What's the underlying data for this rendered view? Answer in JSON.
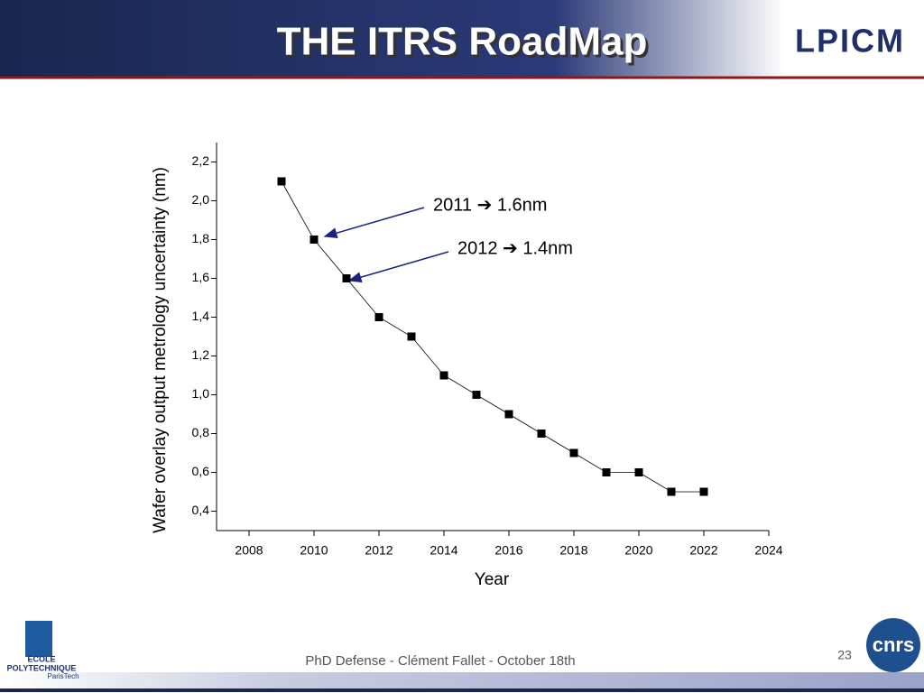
{
  "header": {
    "title": "THE ITRS RoadMap",
    "logo": "LPICM"
  },
  "chart_data": {
    "type": "line",
    "x": [
      2009,
      2010,
      2011,
      2012,
      2013,
      2014,
      2015,
      2016,
      2017,
      2018,
      2019,
      2020,
      2021,
      2022
    ],
    "values": [
      2.1,
      1.8,
      1.6,
      1.4,
      1.3,
      1.1,
      1.0,
      0.9,
      0.8,
      0.7,
      0.6,
      0.6,
      0.5,
      0.5
    ],
    "color": "#000000",
    "x_label": "Year",
    "y_label": "Wafer overlay output metrology uncertainty (nm)",
    "xlim": [
      2007,
      2024
    ],
    "xticks": [
      2008,
      2010,
      2012,
      2014,
      2016,
      2018,
      2020,
      2022,
      2024
    ],
    "ylim": [
      0.3,
      2.3
    ],
    "yticks": [
      {
        "value": 0.4,
        "label": "0,4"
      },
      {
        "value": 0.6,
        "label": "0,6"
      },
      {
        "value": 0.8,
        "label": "0,8"
      },
      {
        "value": 1.0,
        "label": "1,0"
      },
      {
        "value": 1.2,
        "label": "1,2"
      },
      {
        "value": 1.4,
        "label": "1,4"
      },
      {
        "value": 1.6,
        "label": "1,6"
      },
      {
        "value": 1.8,
        "label": "1,8"
      },
      {
        "value": 2.0,
        "label": "2,0"
      },
      {
        "value": 2.2,
        "label": "2,2"
      }
    ],
    "annotations": [
      "2011 ➔ 1.6nm",
      "2012 ➔ 1.4nm"
    ]
  },
  "footer": {
    "text": "PhD Defense - Clément Fallet - October 18th",
    "page": "23",
    "left_logo": [
      "ÉCOLE",
      "POLYTECHNIQUE",
      "ParisTech"
    ],
    "right_logo": "cnrs"
  }
}
